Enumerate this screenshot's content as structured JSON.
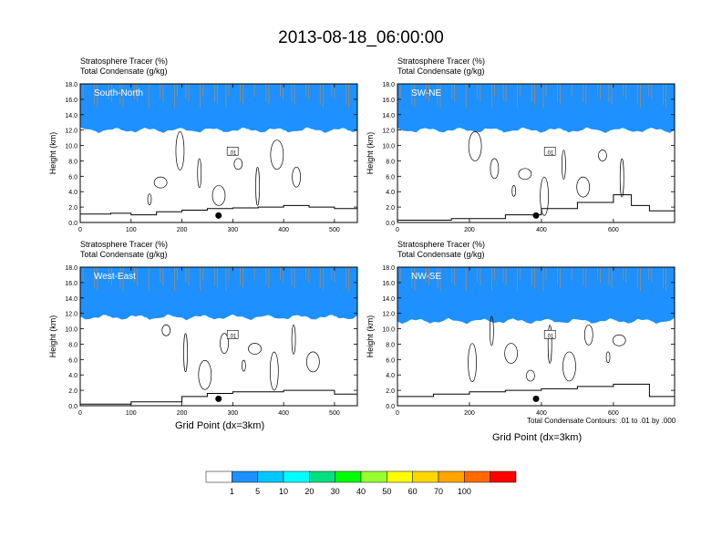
{
  "title": "2013-08-18_06:00:00",
  "panel_title_lines": [
    "Stratosphere Tracer   (%)",
    "Total Condensate   (g/kg)"
  ],
  "y_axis_label": "Height (km)",
  "x_axis_label": "Grid Point (dx=3km)",
  "contour_note": "Total Condensate Contours: .01 to .01 by .000",
  "contour_label": ".01",
  "colors": {
    "bins": [
      "#ffffff",
      "#1e90ff",
      "#00c8ff",
      "#00ffff",
      "#00e080",
      "#00ff00",
      "#9aff32",
      "#ffff00",
      "#ffd700",
      "#ffa500",
      "#ff6a00",
      "#ff0000"
    ],
    "axis": "#000000"
  },
  "colorbar_labels": [
    "1",
    "5",
    "10",
    "20",
    "30",
    "40",
    "50",
    "60",
    "70",
    "100"
  ],
  "chart_data": [
    {
      "type": "heatmap",
      "panel": "South-North",
      "x_ticks": [
        "0",
        "100",
        "200",
        "300",
        "400",
        "500"
      ],
      "y_ticks": [
        "0.0",
        "2.0",
        "4.0",
        "6.0",
        "8.0",
        "10.0",
        "12.0",
        "14.0",
        "16.0",
        "18.0"
      ],
      "xlim": [
        0,
        545
      ],
      "ylim": [
        0,
        18
      ],
      "tracer_band_km": {
        "bottom": 12.0,
        "top": 18.0
      },
      "marker_x": 272,
      "terrain": [
        [
          0,
          1.1
        ],
        [
          60,
          1.2
        ],
        [
          100,
          1.0
        ],
        [
          150,
          1.4
        ],
        [
          200,
          1.6
        ],
        [
          250,
          1.8
        ],
        [
          300,
          1.9
        ],
        [
          350,
          2.0
        ],
        [
          400,
          2.2
        ],
        [
          450,
          2.0
        ],
        [
          500,
          1.8
        ],
        [
          545,
          1.9
        ]
      ]
    },
    {
      "type": "heatmap",
      "panel": "SW-NE",
      "x_ticks": [
        "0",
        "200",
        "400",
        "600"
      ],
      "y_ticks": [
        "0.0",
        "2.0",
        "4.0",
        "6.0",
        "8.0",
        "10.0",
        "12.0",
        "14.0",
        "16.0",
        "18.0"
      ],
      "xlim": [
        0,
        770
      ],
      "ylim": [
        0,
        18
      ],
      "tracer_band_km": {
        "bottom": 12.0,
        "top": 18.0
      },
      "marker_x": 385,
      "terrain": [
        [
          0,
          0.3
        ],
        [
          150,
          0.5
        ],
        [
          300,
          1.0
        ],
        [
          400,
          1.8
        ],
        [
          500,
          2.6
        ],
        [
          600,
          3.6
        ],
        [
          650,
          2.2
        ],
        [
          700,
          1.5
        ],
        [
          770,
          1.6
        ]
      ]
    },
    {
      "type": "heatmap",
      "panel": "West-East",
      "x_ticks": [
        "0",
        "100",
        "200",
        "300",
        "400",
        "500"
      ],
      "y_ticks": [
        "0.0",
        "2.0",
        "4.0",
        "6.0",
        "8.0",
        "10.0",
        "12.0",
        "14.0",
        "16.0",
        "18.0"
      ],
      "xlim": [
        0,
        545
      ],
      "ylim": [
        0,
        18
      ],
      "tracer_band_km": {
        "bottom": 11.5,
        "top": 18.0
      },
      "marker_x": 272,
      "terrain": [
        [
          0,
          0.2
        ],
        [
          100,
          0.5
        ],
        [
          200,
          1.2
        ],
        [
          250,
          1.6
        ],
        [
          300,
          1.8
        ],
        [
          400,
          2.0
        ],
        [
          500,
          1.5
        ],
        [
          545,
          1.2
        ]
      ]
    },
    {
      "type": "heatmap",
      "panel": "NW-SE",
      "x_ticks": [
        "0",
        "200",
        "400",
        "600"
      ],
      "y_ticks": [
        "0.0",
        "2.0",
        "4.0",
        "6.0",
        "8.0",
        "10.0",
        "12.0",
        "14.0",
        "16.0",
        "18.0"
      ],
      "xlim": [
        0,
        770
      ],
      "ylim": [
        0,
        18
      ],
      "tracer_band_km": {
        "bottom": 11.0,
        "top": 18.0
      },
      "marker_x": 385,
      "terrain": [
        [
          0,
          1.2
        ],
        [
          100,
          1.5
        ],
        [
          200,
          1.8
        ],
        [
          300,
          2.0
        ],
        [
          400,
          2.2
        ],
        [
          500,
          2.5
        ],
        [
          600,
          2.8
        ],
        [
          700,
          1.2
        ],
        [
          770,
          0.6
        ]
      ]
    }
  ]
}
